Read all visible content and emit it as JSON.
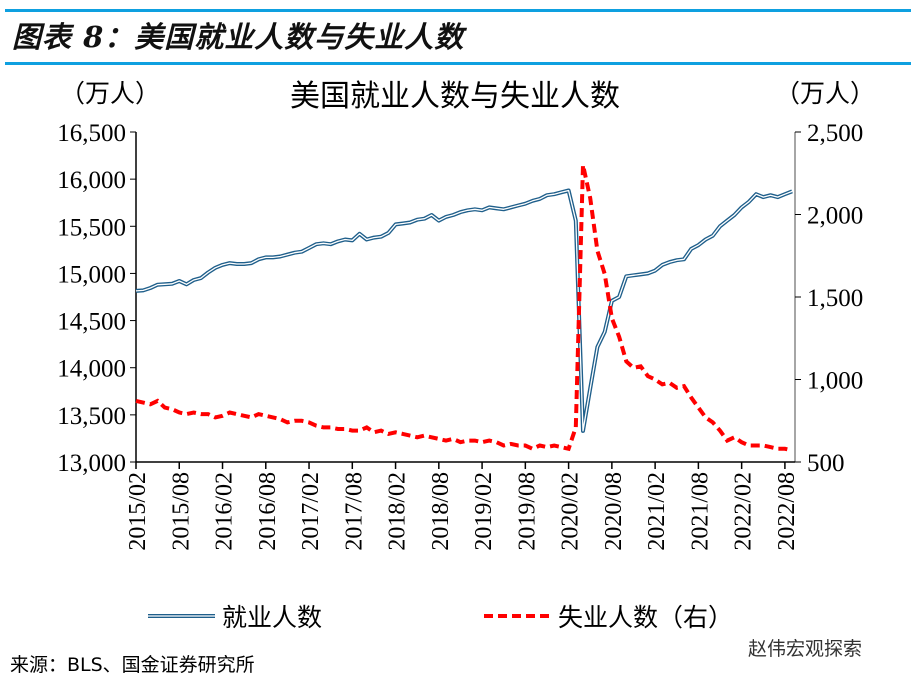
{
  "figure_title": "图表 8：美国就业人数与失业人数",
  "source": "来源：BLS、国金证券研究所",
  "watermark": "赵伟宏观探索",
  "colors": {
    "employment": "#1f5f8b",
    "unemployment": "#ff0000",
    "accent": "#0ea0e0"
  },
  "chart_data": {
    "type": "line",
    "title": "美国就业人数与失业人数",
    "ylabel_left": "（万人）",
    "ylabel_right": "（万人）",
    "ylim_left": [
      13000,
      16500
    ],
    "ylim_right": [
      500,
      2500
    ],
    "yticks_left": [
      "13,000",
      "13,500",
      "14,000",
      "14,500",
      "15,000",
      "15,500",
      "16,000",
      "16,500"
    ],
    "yticks_right": [
      "500",
      "1,000",
      "1,500",
      "2,000",
      "2,500"
    ],
    "xticks": [
      "2015/02",
      "2015/08",
      "2016/02",
      "2016/08",
      "2017/02",
      "2017/08",
      "2018/02",
      "2018/08",
      "2019/02",
      "2019/08",
      "2020/02",
      "2020/08",
      "2021/02",
      "2021/08",
      "2022/02",
      "2022/08"
    ],
    "x_start": "2015/02",
    "x_end": "2022/09",
    "frequency": "monthly",
    "series": [
      {
        "name": "就业人数",
        "axis": "left",
        "style": "double-line",
        "values": [
          14815,
          14820,
          14845,
          14880,
          14885,
          14890,
          14920,
          14885,
          14930,
          14950,
          15010,
          15060,
          15090,
          15110,
          15100,
          15100,
          15110,
          15150,
          15170,
          15170,
          15180,
          15200,
          15220,
          15230,
          15270,
          15310,
          15320,
          15310,
          15340,
          15360,
          15350,
          15420,
          15360,
          15380,
          15390,
          15430,
          15520,
          15530,
          15540,
          15570,
          15580,
          15620,
          15560,
          15600,
          15620,
          15650,
          15670,
          15680,
          15670,
          15700,
          15690,
          15680,
          15700,
          15720,
          15740,
          15770,
          15790,
          15830,
          15840,
          15860,
          15880,
          15560,
          13330,
          13780,
          14220,
          14380,
          14710,
          14750,
          14970,
          14980,
          14990,
          15000,
          15030,
          15090,
          15120,
          15140,
          15150,
          15260,
          15300,
          15360,
          15400,
          15500,
          15560,
          15620,
          15700,
          15760,
          15840,
          15810,
          15830,
          15810,
          15840,
          15870
        ]
      },
      {
        "name": "失业人数（右）",
        "axis": "right",
        "style": "dashed",
        "values": [
          870,
          860,
          850,
          870,
          830,
          820,
          800,
          790,
          800,
          790,
          790,
          770,
          780,
          800,
          790,
          780,
          770,
          790,
          780,
          770,
          760,
          740,
          750,
          750,
          740,
          720,
          710,
          710,
          700,
          700,
          690,
          690,
          710,
          680,
          690,
          670,
          680,
          670,
          660,
          650,
          660,
          650,
          640,
          630,
          640,
          620,
          630,
          630,
          620,
          630,
          620,
          600,
          610,
          600,
          600,
          580,
          600,
          590,
          600,
          590,
          580,
          710,
          2300,
          2100,
          1780,
          1640,
          1370,
          1260,
          1110,
          1070,
          1080,
          1020,
          1000,
          970,
          980,
          950,
          960,
          890,
          830,
          770,
          740,
          690,
          630,
          650,
          620,
          600,
          600,
          600,
          590,
          580,
          580,
          570
        ]
      }
    ]
  }
}
